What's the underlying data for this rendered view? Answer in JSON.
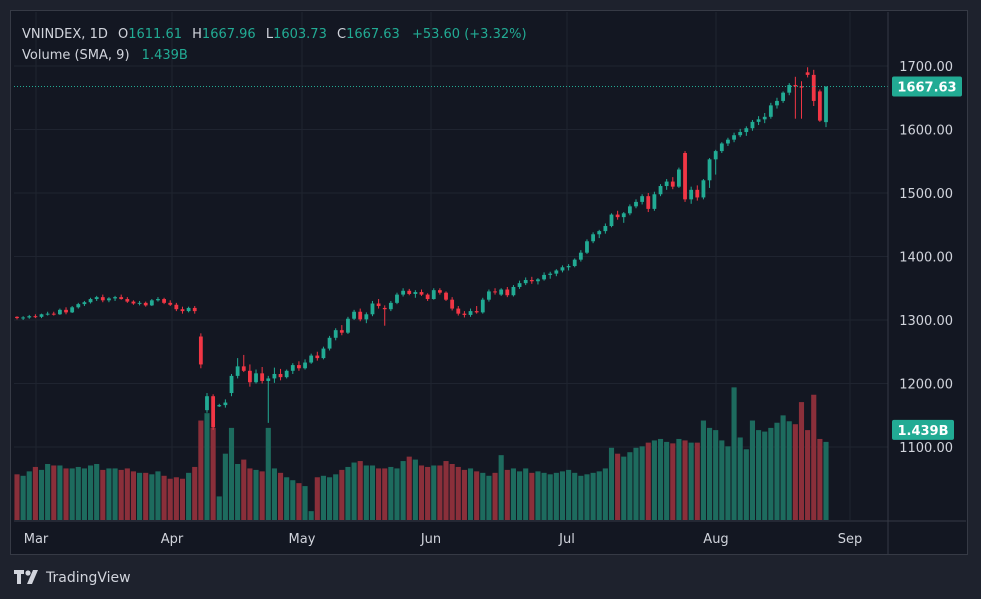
{
  "legend": {
    "symbol": "VNINDEX, 1D",
    "open_key": "O",
    "open": "1611.61",
    "high_key": "H",
    "high": "1667.96",
    "low_key": "L",
    "low": "1603.73",
    "close_key": "C",
    "close": "1667.63",
    "change": "+53.60 (+3.32%)",
    "volume_label": "Volume (SMA, 9)",
    "volume_value": "1.439B"
  },
  "price_badge": "1667.63",
  "volume_badge": "1.439B",
  "brand": {
    "name": "TradingView"
  },
  "colors": {
    "up": "#22ab94",
    "down": "#f23645",
    "up_vol": "#1d6b5e",
    "down_vol": "#8a2f3a",
    "background": "#131722",
    "grid": "#1f2430"
  },
  "chart_data": {
    "type": "candlestick",
    "title": "VNINDEX, 1D",
    "y_ticks": [
      "1700.00",
      "1600.00",
      "1500.00",
      "1400.00",
      "1300.00",
      "1200.00",
      "1100.00"
    ],
    "ylim": [
      1040,
      1730
    ],
    "x_ticks": [
      "Mar",
      "Apr",
      "May",
      "Jun",
      "Jul",
      "Aug",
      "Sep"
    ],
    "volume_ylim_max": 1.9,
    "series": [
      {
        "name": "VNINDEX",
        "ohlc": [
          [
            1305,
            1306,
            1301,
            1303
          ],
          [
            1303,
            1306,
            1300,
            1304
          ],
          [
            1304,
            1308,
            1302,
            1306
          ],
          [
            1306,
            1309,
            1303,
            1305
          ],
          [
            1305,
            1310,
            1303,
            1309
          ],
          [
            1309,
            1313,
            1307,
            1310
          ],
          [
            1310,
            1313,
            1307,
            1309
          ],
          [
            1309,
            1318,
            1308,
            1316
          ],
          [
            1316,
            1320,
            1309,
            1312
          ],
          [
            1312,
            1322,
            1311,
            1320
          ],
          [
            1320,
            1327,
            1318,
            1325
          ],
          [
            1325,
            1330,
            1322,
            1328
          ],
          [
            1328,
            1335,
            1326,
            1333
          ],
          [
            1333,
            1338,
            1330,
            1336
          ],
          [
            1336,
            1340,
            1328,
            1331
          ],
          [
            1331,
            1336,
            1328,
            1334
          ],
          [
            1334,
            1338,
            1330,
            1336
          ],
          [
            1336,
            1340,
            1332,
            1333
          ],
          [
            1333,
            1336,
            1327,
            1329
          ],
          [
            1329,
            1331,
            1324,
            1326
          ],
          [
            1326,
            1330,
            1323,
            1327
          ],
          [
            1327,
            1329,
            1321,
            1323
          ],
          [
            1323,
            1333,
            1322,
            1331
          ],
          [
            1331,
            1336,
            1329,
            1333
          ],
          [
            1333,
            1335,
            1325,
            1327
          ],
          [
            1327,
            1331,
            1322,
            1324
          ],
          [
            1324,
            1327,
            1314,
            1317
          ],
          [
            1317,
            1321,
            1310,
            1314
          ],
          [
            1314,
            1321,
            1312,
            1319
          ],
          [
            1319,
            1322,
            1310,
            1314
          ],
          [
            1274,
            1279,
            1224,
            1230
          ],
          [
            1158,
            1185,
            1154,
            1180
          ],
          [
            1180,
            1183,
            1127,
            1131
          ],
          [
            1164,
            1168,
            1163,
            1166
          ],
          [
            1166,
            1175,
            1162,
            1170
          ],
          [
            1185,
            1215,
            1180,
            1212
          ],
          [
            1212,
            1240,
            1208,
            1227
          ],
          [
            1227,
            1245,
            1218,
            1220
          ],
          [
            1220,
            1230,
            1195,
            1202
          ],
          [
            1202,
            1222,
            1200,
            1216
          ],
          [
            1216,
            1226,
            1200,
            1204
          ],
          [
            1204,
            1212,
            1138,
            1208
          ],
          [
            1208,
            1225,
            1201,
            1215
          ],
          [
            1215,
            1223,
            1205,
            1210
          ],
          [
            1210,
            1222,
            1208,
            1220
          ],
          [
            1220,
            1232,
            1215,
            1229
          ],
          [
            1229,
            1235,
            1220,
            1224
          ],
          [
            1224,
            1238,
            1222,
            1233
          ],
          [
            1233,
            1247,
            1231,
            1244
          ],
          [
            1244,
            1250,
            1236,
            1240
          ],
          [
            1240,
            1258,
            1238,
            1255
          ],
          [
            1255,
            1275,
            1252,
            1272
          ],
          [
            1272,
            1287,
            1268,
            1284
          ],
          [
            1284,
            1292,
            1276,
            1280
          ],
          [
            1280,
            1305,
            1278,
            1302
          ],
          [
            1302,
            1316,
            1300,
            1313
          ],
          [
            1313,
            1318,
            1298,
            1301
          ],
          [
            1301,
            1312,
            1295,
            1309
          ],
          [
            1309,
            1330,
            1306,
            1326
          ],
          [
            1326,
            1333,
            1318,
            1322
          ],
          [
            1319,
            1323,
            1291,
            1317
          ],
          [
            1317,
            1330,
            1314,
            1327
          ],
          [
            1327,
            1343,
            1325,
            1340
          ],
          [
            1340,
            1350,
            1337,
            1346
          ],
          [
            1346,
            1349,
            1339,
            1341
          ],
          [
            1341,
            1347,
            1335,
            1344
          ],
          [
            1344,
            1348,
            1338,
            1340
          ],
          [
            1340,
            1342,
            1330,
            1333
          ],
          [
            1333,
            1350,
            1332,
            1347
          ],
          [
            1347,
            1350,
            1340,
            1343
          ],
          [
            1343,
            1345,
            1330,
            1332
          ],
          [
            1332,
            1336,
            1315,
            1318
          ],
          [
            1318,
            1322,
            1307,
            1310
          ],
          [
            1310,
            1314,
            1304,
            1308
          ],
          [
            1308,
            1318,
            1305,
            1314
          ],
          [
            1314,
            1322,
            1310,
            1312
          ],
          [
            1312,
            1335,
            1310,
            1332
          ],
          [
            1332,
            1348,
            1329,
            1345
          ],
          [
            1345,
            1350,
            1340,
            1344
          ],
          [
            1340,
            1350,
            1338,
            1348
          ],
          [
            1348,
            1352,
            1336,
            1339
          ],
          [
            1339,
            1355,
            1337,
            1352
          ],
          [
            1352,
            1362,
            1349,
            1358
          ],
          [
            1358,
            1367,
            1355,
            1363
          ],
          [
            1363,
            1368,
            1357,
            1361
          ],
          [
            1361,
            1366,
            1356,
            1364
          ],
          [
            1364,
            1375,
            1362,
            1371
          ],
          [
            1371,
            1376,
            1365,
            1373
          ],
          [
            1373,
            1380,
            1369,
            1378
          ],
          [
            1378,
            1386,
            1375,
            1383
          ],
          [
            1383,
            1388,
            1378,
            1385
          ],
          [
            1385,
            1397,
            1383,
            1395
          ],
          [
            1395,
            1410,
            1392,
            1406
          ],
          [
            1406,
            1427,
            1404,
            1424
          ],
          [
            1424,
            1438,
            1421,
            1435
          ],
          [
            1435,
            1442,
            1429,
            1440
          ],
          [
            1440,
            1452,
            1436,
            1448
          ],
          [
            1448,
            1468,
            1446,
            1466
          ],
          [
            1466,
            1472,
            1458,
            1462
          ],
          [
            1462,
            1470,
            1453,
            1468
          ],
          [
            1468,
            1482,
            1465,
            1479
          ],
          [
            1479,
            1490,
            1476,
            1486
          ],
          [
            1486,
            1498,
            1482,
            1495
          ],
          [
            1495,
            1500,
            1470,
            1475
          ],
          [
            1475,
            1502,
            1472,
            1498
          ],
          [
            1498,
            1514,
            1495,
            1511
          ],
          [
            1511,
            1522,
            1505,
            1518
          ],
          [
            1518,
            1525,
            1506,
            1510
          ],
          [
            1510,
            1540,
            1508,
            1537
          ],
          [
            1563,
            1566,
            1486,
            1490
          ],
          [
            1490,
            1510,
            1483,
            1505
          ],
          [
            1505,
            1512,
            1488,
            1493
          ],
          [
            1493,
            1522,
            1490,
            1520
          ],
          [
            1520,
            1555,
            1508,
            1553
          ],
          [
            1553,
            1568,
            1529,
            1566
          ],
          [
            1566,
            1580,
            1563,
            1578
          ],
          [
            1578,
            1587,
            1574,
            1584
          ],
          [
            1584,
            1595,
            1580,
            1591
          ],
          [
            1591,
            1601,
            1588,
            1596
          ],
          [
            1596,
            1605,
            1590,
            1602
          ],
          [
            1602,
            1615,
            1598,
            1612
          ],
          [
            1612,
            1621,
            1607,
            1616
          ],
          [
            1616,
            1626,
            1610,
            1620
          ],
          [
            1620,
            1642,
            1617,
            1638
          ],
          [
            1638,
            1650,
            1633,
            1645
          ],
          [
            1645,
            1660,
            1642,
            1658
          ],
          [
            1658,
            1673,
            1654,
            1670
          ],
          [
            1670,
            1683,
            1617,
            1668
          ],
          [
            1668,
            1676,
            1617,
            1666
          ],
          [
            1690,
            1698,
            1682,
            1686
          ],
          [
            1686,
            1694,
            1637,
            1645
          ],
          [
            1660,
            1663,
            1612,
            1614
          ],
          [
            1611.61,
            1667.96,
            1603.73,
            1667.63
          ]
        ]
      },
      {
        "name": "Volume",
        "values": [
          0.62,
          0.6,
          0.66,
          0.72,
          0.68,
          0.76,
          0.74,
          0.74,
          0.7,
          0.7,
          0.72,
          0.7,
          0.74,
          0.76,
          0.68,
          0.7,
          0.7,
          0.68,
          0.7,
          0.66,
          0.64,
          0.64,
          0.62,
          0.66,
          0.6,
          0.56,
          0.58,
          0.56,
          0.64,
          0.72,
          1.35,
          1.45,
          1.25,
          0.32,
          0.9,
          1.25,
          0.76,
          0.82,
          0.7,
          0.68,
          0.66,
          1.25,
          0.7,
          0.64,
          0.58,
          0.54,
          0.5,
          0.46,
          0.12,
          0.58,
          0.6,
          0.58,
          0.62,
          0.68,
          0.72,
          0.78,
          0.8,
          0.74,
          0.74,
          0.7,
          0.7,
          0.72,
          0.7,
          0.8,
          0.86,
          0.82,
          0.74,
          0.72,
          0.74,
          0.74,
          0.8,
          0.76,
          0.72,
          0.68,
          0.7,
          0.66,
          0.64,
          0.6,
          0.64,
          0.88,
          0.68,
          0.7,
          0.66,
          0.7,
          0.64,
          0.66,
          0.64,
          0.62,
          0.64,
          0.66,
          0.68,
          0.64,
          0.6,
          0.62,
          0.64,
          0.66,
          0.7,
          0.98,
          0.9,
          0.86,
          0.92,
          0.98,
          1.0,
          1.05,
          1.08,
          1.1,
          1.06,
          1.04,
          1.1,
          1.08,
          1.05,
          1.05,
          1.35,
          1.25,
          1.22,
          1.08,
          1.0,
          1.8,
          1.12,
          0.96,
          1.35,
          1.22,
          1.2,
          1.25,
          1.32,
          1.42,
          1.34,
          1.3,
          1.6,
          1.22,
          1.7,
          1.1,
          1.06
        ]
      }
    ]
  }
}
